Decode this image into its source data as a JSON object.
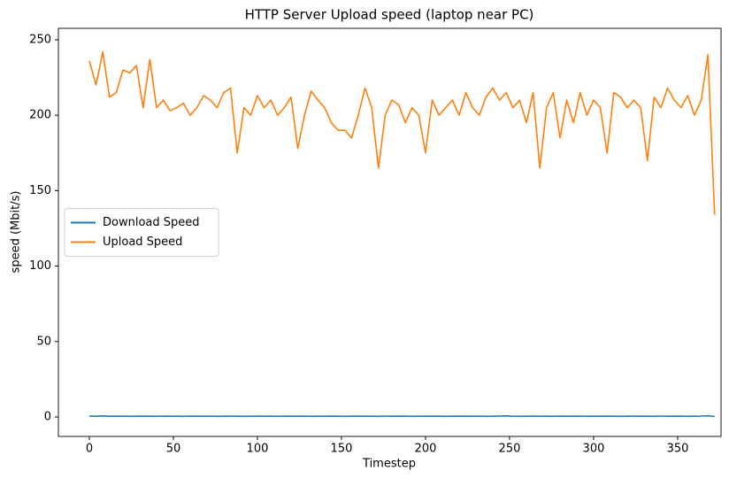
{
  "chart_data": {
    "type": "line",
    "title": "HTTP Server Upload speed (laptop near PC)",
    "xlabel": "Timestep",
    "ylabel": "speed (Mbit/s)",
    "x": [
      0,
      4,
      8,
      12,
      16,
      20,
      24,
      28,
      32,
      36,
      40,
      44,
      48,
      52,
      56,
      60,
      64,
      68,
      72,
      76,
      80,
      84,
      88,
      92,
      96,
      100,
      104,
      108,
      112,
      116,
      120,
      124,
      128,
      132,
      136,
      140,
      144,
      148,
      152,
      156,
      160,
      164,
      168,
      172,
      176,
      180,
      184,
      188,
      192,
      196,
      200,
      204,
      208,
      212,
      216,
      220,
      224,
      228,
      232,
      236,
      240,
      244,
      248,
      252,
      256,
      260,
      264,
      268,
      272,
      276,
      280,
      284,
      288,
      292,
      296,
      300,
      304,
      308,
      312,
      316,
      320,
      324,
      328,
      332,
      336,
      340,
      344,
      348,
      352,
      356,
      360,
      364,
      368,
      372
    ],
    "series": [
      {
        "name": "Download Speed",
        "color": "#1f77b4",
        "values": [
          0.6,
          0.4,
          0.7,
          0.5,
          0.5,
          0.6,
          0.4,
          0.5,
          0.6,
          0.5,
          0.4,
          0.6,
          0.5,
          0.5,
          0.4,
          0.6,
          0.5,
          0.5,
          0.6,
          0.4,
          0.5,
          0.6,
          0.5,
          0.4,
          0.5,
          0.6,
          0.5,
          0.5,
          0.4,
          0.6,
          0.5,
          0.5,
          0.6,
          0.4,
          0.5,
          0.5,
          0.6,
          0.5,
          0.4,
          0.5,
          0.6,
          0.5,
          0.5,
          0.4,
          0.6,
          0.5,
          0.5,
          0.6,
          0.4,
          0.5,
          0.5,
          0.6,
          0.5,
          0.4,
          0.5,
          0.6,
          0.5,
          0.5,
          0.6,
          0.4,
          0.5,
          0.6,
          0.7,
          0.5,
          0.4,
          0.5,
          0.6,
          0.5,
          0.5,
          0.4,
          0.6,
          0.5,
          0.5,
          0.6,
          0.4,
          0.5,
          0.5,
          0.6,
          0.5,
          0.4,
          0.5,
          0.6,
          0.5,
          0.5,
          0.4,
          0.6,
          0.5,
          0.5,
          0.6,
          0.4,
          0.5,
          0.6,
          0.8,
          0.3
        ]
      },
      {
        "name": "Upload Speed",
        "color": "#ff7f0e",
        "values": [
          236,
          220,
          242,
          212,
          215,
          230,
          228,
          233,
          205,
          237,
          205,
          210,
          203,
          205,
          208,
          200,
          205,
          213,
          210,
          205,
          215,
          218,
          175,
          205,
          200,
          213,
          205,
          210,
          200,
          205,
          212,
          178,
          200,
          216,
          210,
          205,
          195,
          190,
          190,
          185,
          200,
          218,
          205,
          165,
          200,
          210,
          207,
          195,
          205,
          200,
          175,
          210,
          200,
          205,
          210,
          200,
          215,
          205,
          200,
          212,
          218,
          210,
          215,
          205,
          210,
          195,
          215,
          165,
          205,
          215,
          185,
          210,
          195,
          215,
          200,
          210,
          205,
          175,
          215,
          212,
          205,
          210,
          205,
          170,
          212,
          205,
          218,
          210,
          205,
          213,
          200,
          210,
          240,
          134
        ]
      }
    ],
    "xlim": [
      -18.4,
      375.8
    ],
    "ylim": [
      -12.9,
      257.6
    ],
    "xticks": [
      0,
      50,
      100,
      150,
      200,
      250,
      300,
      350
    ],
    "yticks": [
      0,
      50,
      100,
      150,
      200,
      250
    ],
    "legend": "center left"
  }
}
